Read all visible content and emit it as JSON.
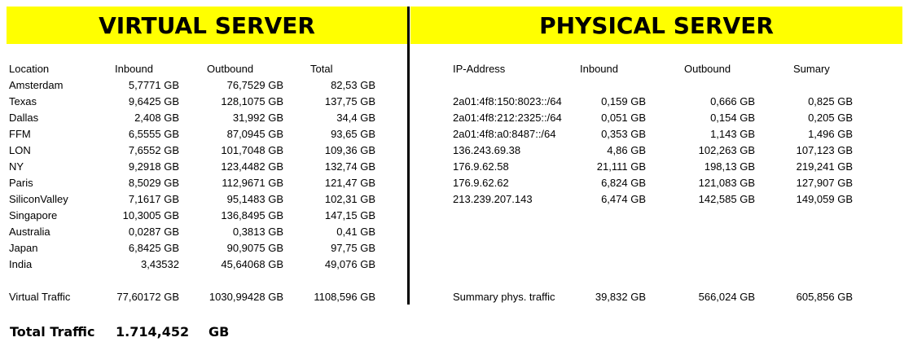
{
  "virtual": {
    "title": "VIRTUAL SERVER",
    "headers": {
      "location": "Location",
      "inbound": "Inbound",
      "outbound": "Outbound",
      "total": "Total"
    },
    "rows": [
      {
        "location": "Amsterdam",
        "inbound": "5,7771 GB",
        "outbound": "76,7529 GB",
        "total": "82,53 GB"
      },
      {
        "location": "Texas",
        "inbound": "9,6425 GB",
        "outbound": "128,1075 GB",
        "total": "137,75 GB"
      },
      {
        "location": "Dallas",
        "inbound": "2,408 GB",
        "outbound": "31,992 GB",
        "total": "34,4 GB"
      },
      {
        "location": "FFM",
        "inbound": "6,5555 GB",
        "outbound": "87,0945 GB",
        "total": "93,65 GB"
      },
      {
        "location": "LON",
        "inbound": "7,6552 GB",
        "outbound": "101,7048 GB",
        "total": "109,36 GB"
      },
      {
        "location": "NY",
        "inbound": "9,2918 GB",
        "outbound": "123,4482 GB",
        "total": "132,74 GB"
      },
      {
        "location": "Paris",
        "inbound": "8,5029 GB",
        "outbound": "112,9671 GB",
        "total": "121,47 GB"
      },
      {
        "location": "SiliconValley",
        "inbound": "7,1617 GB",
        "outbound": "95,1483 GB",
        "total": "102,31 GB"
      },
      {
        "location": "Singapore",
        "inbound": "10,3005 GB",
        "outbound": "136,8495 GB",
        "total": "147,15 GB"
      },
      {
        "location": "Australia",
        "inbound": "0,0287 GB",
        "outbound": "0,3813 GB",
        "total": "0,41 GB"
      },
      {
        "location": "Japan",
        "inbound": "6,8425 GB",
        "outbound": "90,9075 GB",
        "total": "97,75 GB"
      },
      {
        "location": "India",
        "inbound": "3,43532",
        "outbound": "45,64068 GB",
        "total": "49,076 GB"
      }
    ],
    "summary": {
      "label": "Virtual Traffic",
      "inbound": "77,60172 GB",
      "outbound": "1030,99428 GB",
      "total": "1108,596 GB"
    }
  },
  "physical": {
    "title": "PHYSICAL SERVER",
    "headers": {
      "ip": "IP-Address",
      "inbound": "Inbound",
      "outbound": "Outbound",
      "total": "Sumary"
    },
    "rows": [
      {
        "ip": "2a01:4f8:150:8023::/64",
        "inbound": "0,159 GB",
        "outbound": "0,666 GB",
        "total": "0,825 GB"
      },
      {
        "ip": "2a01:4f8:212:2325::/64",
        "inbound": "0,051 GB",
        "outbound": "0,154 GB",
        "total": "0,205 GB"
      },
      {
        "ip": "2a01:4f8:a0:8487::/64",
        "inbound": "0,353 GB",
        "outbound": "1,143 GB",
        "total": "1,496 GB"
      },
      {
        "ip": "136.243.69.38",
        "inbound": "4,86 GB",
        "outbound": "102,263 GB",
        "total": "107,123 GB"
      },
      {
        "ip": "176.9.62.58",
        "inbound": "21,111 GB",
        "outbound": "198,13 GB",
        "total": "219,241 GB"
      },
      {
        "ip": "176.9.62.62",
        "inbound": "6,824 GB",
        "outbound": "121,083 GB",
        "total": "127,907 GB"
      },
      {
        "ip": "213.239.207.143",
        "inbound": "6,474 GB",
        "outbound": "142,585 GB",
        "total": "149,059 GB"
      }
    ],
    "summary": {
      "label": "Summary phys. traffic",
      "inbound": "39,832 GB",
      "outbound": "566,024 GB",
      "total": "605,856 GB"
    }
  },
  "grand_total": {
    "label": "Total Traffic",
    "value": "1.714,452",
    "unit": "GB"
  },
  "colors": {
    "banner": "#ffff00",
    "text": "#000000",
    "divider": "#000000"
  }
}
